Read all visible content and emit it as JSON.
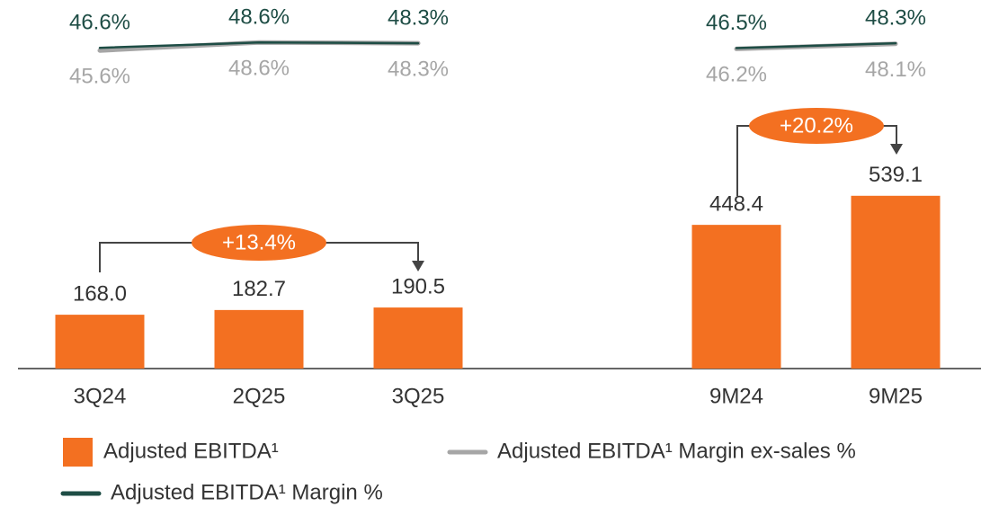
{
  "chart_data": {
    "type": "bar",
    "categories": [
      "3Q24",
      "2Q25",
      "3Q25",
      null,
      "9M24",
      "9M25"
    ],
    "ylim": [
      0,
      1150
    ],
    "y2lim": [
      40,
      60
    ],
    "series": [
      {
        "name": "Adjusted EBITDA¹",
        "type": "bar",
        "color": "#f37021",
        "values": [
          168.0,
          182.7,
          190.5,
          null,
          448.4,
          539.1
        ],
        "value_labels": [
          "168.0",
          "182.7",
          "190.5",
          null,
          "448.4",
          "539.1"
        ]
      },
      {
        "name": "Adjusted EBITDA¹ Margin ex-sales %",
        "type": "line",
        "axis": "y2",
        "color": "#a6a6a6",
        "values": [
          45.6,
          48.6,
          48.3,
          null,
          46.2,
          48.1
        ],
        "value_labels": [
          "45.6%",
          "48.6%",
          "48.3%",
          null,
          "46.2%",
          "48.1%"
        ]
      },
      {
        "name": "Adjusted EBITDA¹ Margin %",
        "type": "line",
        "axis": "y2",
        "color": "#1e4d45",
        "values": [
          46.6,
          48.6,
          48.3,
          null,
          46.5,
          48.3
        ],
        "value_labels": [
          "46.6%",
          "48.6%",
          "48.3%",
          null,
          "46.5%",
          "48.3%"
        ]
      }
    ],
    "annotations": [
      "+13.4%",
      "+20.2%"
    ]
  }
}
